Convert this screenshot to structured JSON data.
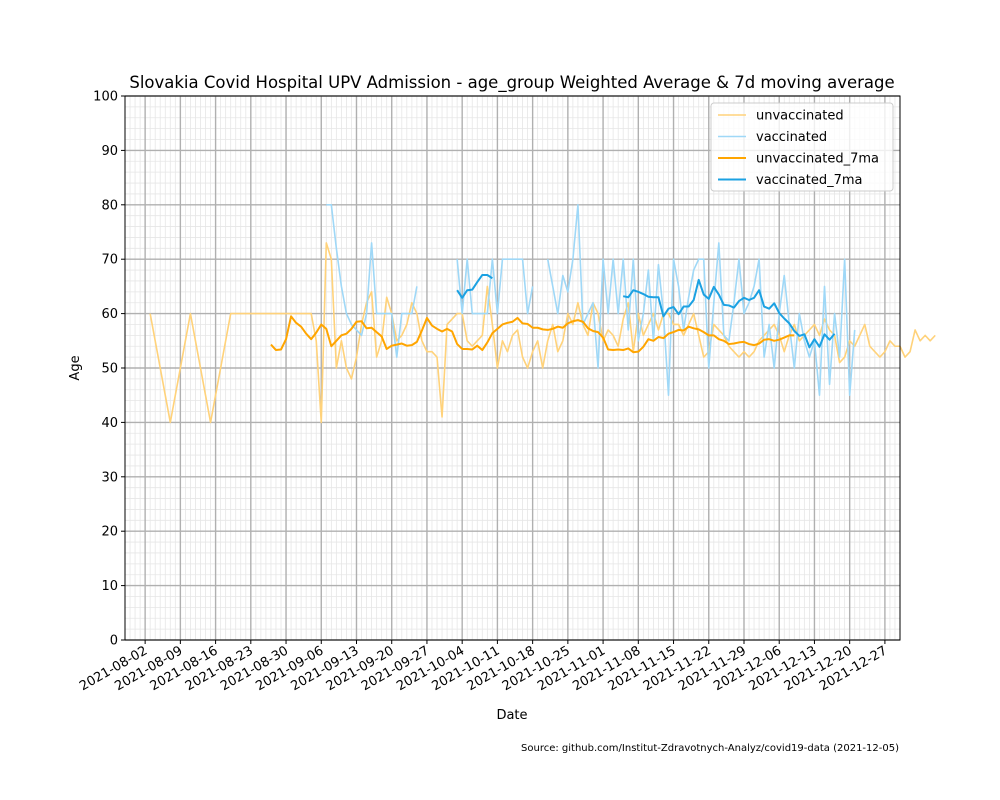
{
  "chart_data": {
    "type": "line",
    "title": "Slovakia Covid Hospital UPV Admission - age_group Weighted Average & 7d moving average",
    "xlabel": "Date",
    "ylabel": "Age",
    "source": "Source: github.com/Institut-Zdravotnych-Analyz/covid19-data (2021-12-05)",
    "xlim": [
      "2021-07-29",
      "2021-12-30"
    ],
    "ylim": [
      0,
      100
    ],
    "x_ticks": [
      "2021-08-02",
      "2021-08-09",
      "2021-08-16",
      "2021-08-23",
      "2021-08-30",
      "2021-09-06",
      "2021-09-13",
      "2021-09-20",
      "2021-09-27",
      "2021-10-04",
      "2021-10-11",
      "2021-10-18",
      "2021-10-25",
      "2021-11-01",
      "2021-11-08",
      "2021-11-15",
      "2021-11-22",
      "2021-11-29",
      "2021-12-06",
      "2021-12-13",
      "2021-12-20",
      "2021-12-27"
    ],
    "y_ticks": [
      0,
      10,
      20,
      30,
      40,
      50,
      60,
      70,
      80,
      90,
      100
    ],
    "grid": true,
    "legend_position": "top-right",
    "series": [
      {
        "name": "unvaccinated",
        "color": "#ffd27a",
        "start": "2021-08-03",
        "values": [
          60,
          55,
          50,
          45,
          40,
          45,
          50,
          55,
          60,
          55,
          50,
          45,
          40,
          45,
          50,
          55,
          60,
          60,
          60,
          60,
          60,
          60,
          60,
          60,
          60,
          60,
          60,
          60,
          60,
          60,
          60,
          60,
          60,
          55,
          40,
          73,
          70,
          50,
          55,
          50,
          48,
          52,
          58,
          62,
          64,
          52,
          55,
          63,
          60,
          55,
          56,
          58,
          62,
          60,
          55,
          53,
          53,
          52,
          41,
          58,
          59,
          60,
          60,
          55,
          54,
          55,
          56,
          65,
          58,
          50,
          55,
          53,
          56,
          57,
          52,
          50,
          53,
          55,
          50,
          55,
          58,
          53,
          55,
          60,
          58,
          62,
          58,
          56,
          62,
          60,
          55,
          57,
          56,
          54,
          59,
          62,
          53,
          60,
          56,
          58,
          60,
          57,
          60,
          60,
          58,
          58,
          56,
          58,
          60,
          56,
          52,
          53,
          58,
          57,
          56,
          54,
          53,
          52,
          53,
          52,
          53,
          55,
          56,
          57,
          58,
          56,
          53,
          56,
          58,
          55,
          56,
          57,
          58,
          56,
          59,
          57,
          56,
          51,
          52,
          55,
          54,
          56,
          58,
          54,
          53,
          52,
          53,
          55,
          54,
          54,
          52,
          53,
          57,
          55,
          56,
          55,
          56
        ]
      },
      {
        "name": "vaccinated",
        "color": "#9fd8f7",
        "start": "2021-09-07",
        "values": [
          80,
          80,
          72,
          65,
          60,
          58,
          57,
          56,
          60,
          73,
          60,
          60,
          60,
          60,
          52,
          60,
          60,
          60,
          65,
          null,
          null,
          null,
          null,
          null,
          null,
          null,
          70,
          60,
          70,
          60,
          60,
          60,
          60,
          70,
          60,
          70,
          70,
          70,
          70,
          70,
          60,
          65,
          null,
          null,
          70,
          65,
          60,
          67,
          64,
          70,
          80,
          58,
          60,
          62,
          50,
          70,
          60,
          70,
          60,
          70,
          57,
          70,
          55,
          60,
          68,
          55,
          69,
          60,
          45,
          70,
          65,
          57,
          63,
          68,
          70,
          70,
          50,
          62,
          73,
          56,
          55,
          62,
          70,
          60,
          62,
          65,
          70,
          52,
          58,
          50,
          60,
          67,
          58,
          50,
          60,
          55,
          52,
          55,
          45,
          65,
          47,
          60,
          52,
          70,
          45,
          57
        ]
      },
      {
        "name": "unvaccinated_7ma",
        "color": "#ffa500",
        "start": "2021-08-27",
        "values": [
          54.3,
          53.3,
          53.4,
          55.3,
          59.5,
          58.3,
          57.6,
          56.3,
          55.3,
          56.5,
          58,
          57.2,
          54,
          55,
          56,
          56.3,
          57.2,
          58.5,
          58.6,
          57.3,
          57.4,
          56.6,
          55.8,
          53.5,
          54.1,
          54.3,
          54.5,
          54.1,
          54.2,
          54.8,
          56.9,
          59.2,
          57.8,
          57.2,
          56.7,
          57.2,
          56.7,
          54.4,
          53.5,
          53.5,
          53.4,
          54.1,
          53.3,
          54.7,
          56.4,
          57.2,
          58,
          58.3,
          58.5,
          59.2,
          58.2,
          58.1,
          57.4,
          57.4,
          57.1,
          57,
          57.2,
          57.6,
          57.4,
          58.2,
          58.6,
          58.8,
          58.5,
          57.3,
          56.8,
          56.6,
          55.6,
          53.4,
          53.3,
          53.4,
          53.3,
          53.6,
          52.9,
          53,
          53.9,
          55.3,
          55,
          55.7,
          55.5,
          56.3,
          56.6,
          57,
          56.9,
          57.6,
          57.3,
          57.1,
          56.6,
          56,
          56,
          55.3,
          55,
          54.4,
          54.5,
          54.7,
          54.8,
          54.4,
          54.2,
          54.5,
          55.2,
          55.3,
          55,
          55.2,
          55.6,
          56,
          56
        ]
      },
      {
        "name": "vaccinated_7ma",
        "color": "#1ba1e2",
        "start": "2021-10-03",
        "values": [
          64.3,
          62.9,
          64.3,
          64.4,
          65.8,
          67.1,
          67.1,
          66.5,
          null,
          null,
          null,
          null,
          null,
          null,
          null,
          null,
          null,
          null,
          null,
          null,
          null,
          null,
          null,
          null,
          null,
          null,
          null,
          null,
          null,
          null,
          null,
          null,
          null,
          63.2,
          63,
          64.3,
          64,
          63.6,
          63.1,
          63,
          63,
          59.5,
          60.9,
          61.2,
          59.9,
          61.3,
          61.3,
          62.5,
          66.2,
          63.5,
          62.7,
          64.9,
          63.5,
          61.6,
          61.5,
          61.1,
          62.3,
          62.9,
          62.5,
          62.9,
          64.3,
          61.3,
          60.9,
          61.9,
          60.1,
          59.1,
          58.2,
          56.8,
          55.9,
          56.2,
          53.8,
          55.3,
          53.9,
          56.2,
          55.2,
          56.3
        ]
      }
    ]
  }
}
